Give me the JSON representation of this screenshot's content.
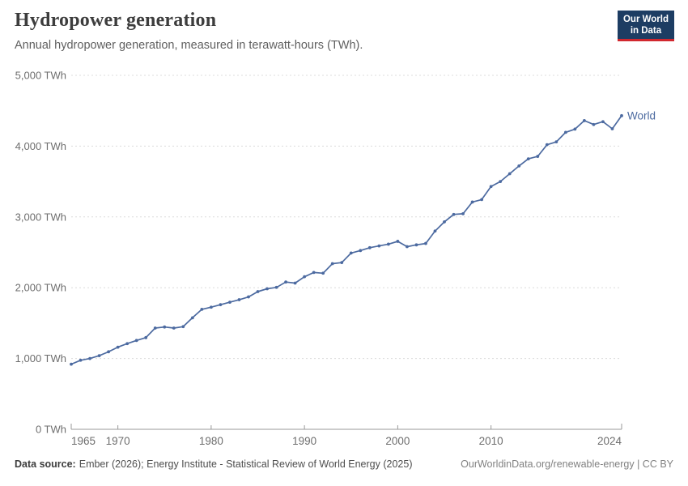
{
  "header": {
    "title": "Hydropower generation",
    "subtitle": "Annual hydropower generation, measured in terawatt-hours (TWh)."
  },
  "logo": {
    "line1": "Our World",
    "line2": "in Data"
  },
  "chart_data": {
    "type": "line",
    "title": "Hydropower generation",
    "unit": "TWh",
    "xlim": [
      1965,
      2024
    ],
    "ylim": [
      0,
      5000
    ],
    "grid": "horizontal-dashed",
    "legend_position": "end-of-line-label",
    "x_ticks": [
      1965,
      1970,
      1980,
      1990,
      2000,
      2010,
      2024
    ],
    "y_ticks": [
      0,
      1000,
      2000,
      3000,
      4000,
      5000
    ],
    "y_tick_labels": [
      "0 TWh",
      "1,000 TWh",
      "2,000 TWh",
      "3,000 TWh",
      "4,000 TWh",
      "5,000 TWh"
    ],
    "line_color": "#4c6aa0",
    "series": [
      {
        "name": "World",
        "color": "#4c6aa0",
        "x": [
          1965,
          1966,
          1967,
          1968,
          1969,
          1970,
          1971,
          1972,
          1973,
          1974,
          1975,
          1976,
          1977,
          1978,
          1979,
          1980,
          1981,
          1982,
          1983,
          1984,
          1985,
          1986,
          1987,
          1988,
          1989,
          1990,
          1991,
          1992,
          1993,
          1994,
          1995,
          1996,
          1997,
          1998,
          1999,
          2000,
          2001,
          2002,
          2003,
          2004,
          2005,
          2006,
          2007,
          2008,
          2009,
          2010,
          2011,
          2012,
          2013,
          2014,
          2015,
          2016,
          2017,
          2018,
          2019,
          2020,
          2021,
          2022,
          2023,
          2024
        ],
        "values": [
          920,
          975,
          1000,
          1040,
          1095,
          1160,
          1210,
          1255,
          1295,
          1430,
          1445,
          1430,
          1450,
          1575,
          1695,
          1725,
          1760,
          1795,
          1830,
          1870,
          1945,
          1985,
          2005,
          2080,
          2065,
          2155,
          2215,
          2205,
          2340,
          2355,
          2490,
          2525,
          2565,
          2590,
          2615,
          2655,
          2580,
          2605,
          2625,
          2800,
          2930,
          3035,
          3045,
          3210,
          3245,
          3430,
          3500,
          3610,
          3720,
          3820,
          3855,
          4020,
          4060,
          4195,
          4240,
          4360,
          4305,
          4345,
          4245,
          4430
        ]
      }
    ]
  },
  "footer": {
    "source_label": "Data source:",
    "source_text": "Ember (2026); Energy Institute - Statistical Review of World Energy (2025)",
    "link_text": "OurWorldinData.org/renewable-energy | CC BY"
  }
}
